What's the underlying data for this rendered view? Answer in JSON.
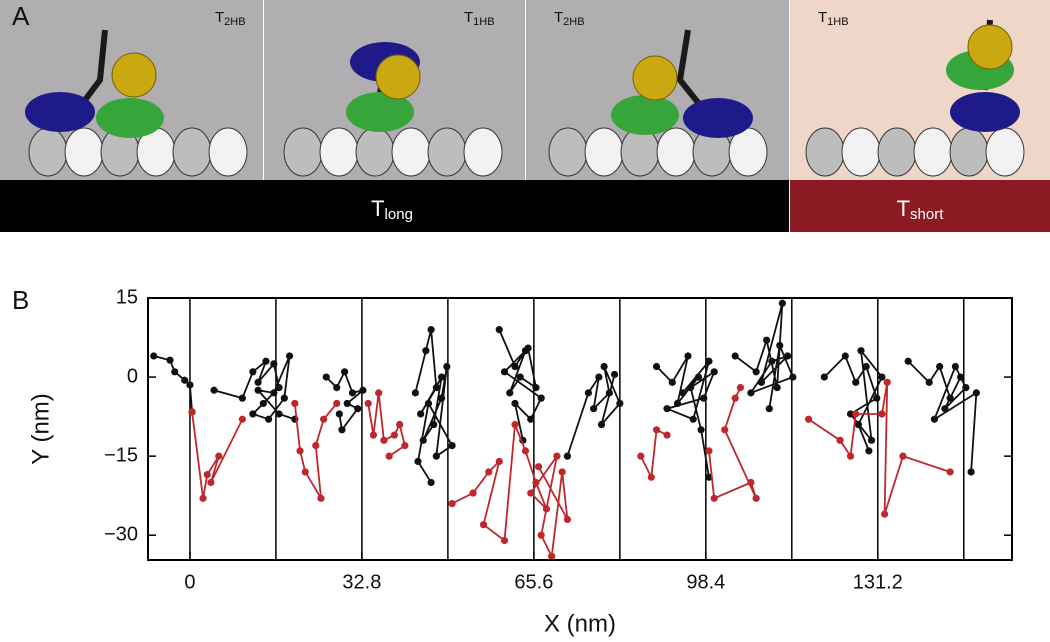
{
  "panel_a": {
    "label": "A",
    "panes": [
      {
        "main": "T",
        "sub": "2HB"
      },
      {
        "main": "T",
        "sub": "1HB"
      },
      {
        "main": "T",
        "sub": "2HB"
      },
      {
        "main": "T",
        "sub": "1HB"
      }
    ],
    "bars": [
      {
        "main": "T",
        "sub": "long",
        "color": "#000000"
      },
      {
        "main": "T",
        "sub": "short",
        "color": "#8b1a22"
      }
    ]
  },
  "chart_data": {
    "type": "line",
    "panel_label": "B",
    "x_label": "X (nm)",
    "y_label": "Y (nm)",
    "xlim": [
      -8,
      156.8
    ],
    "ylim": [
      -34.7,
      15
    ],
    "xticks": [
      0,
      32.8,
      65.6,
      98.4,
      131.2
    ],
    "yticks": [
      15,
      0,
      {
        "value": -15,
        "label": "−15"
      },
      {
        "value": -30,
        "label": "−30"
      }
    ],
    "vlines": [
      0,
      16.4,
      32.8,
      49.2,
      65.6,
      82,
      98.4,
      114.8,
      131.2,
      147.6
    ],
    "series": [
      {
        "color": "#111111",
        "x": [
          -6.9,
          -3.8,
          -2.9,
          -1,
          0,
          0.4,
          null,
          4.6,
          10,
          12,
          14.5,
          13,
          16,
          17,
          14,
          12,
          15,
          18,
          19,
          16,
          13,
          17,
          20,
          null,
          26,
          28,
          29.5,
          31,
          33,
          30,
          32,
          29,
          28.5,
          null,
          43,
          45,
          46,
          47,
          44,
          48,
          46.5,
          44.5,
          48,
          49,
          47,
          50,
          45.5,
          43.5,
          46,
          null,
          59,
          62,
          64,
          61,
          63,
          66,
          64.5,
          60,
          67,
          65,
          62,
          63.5,
          null,
          72,
          76,
          78,
          77,
          80,
          79,
          82,
          78.5,
          81,
          null,
          89,
          92,
          95,
          93,
          97,
          94,
          99,
          96,
          91,
          98,
          100,
          95.5,
          97.5,
          99,
          null,
          104,
          108,
          110,
          112,
          113,
          109,
          114,
          111,
          107,
          115,
          112.5,
          110.5,
          null,
          121,
          125,
          127,
          129,
          131,
          126,
          130,
          128,
          132,
          127.5,
          129.5,
          null,
          137,
          141,
          143,
          145,
          147,
          144,
          148,
          146,
          142,
          150,
          149
        ],
        "values": [
          4,
          3.2,
          1,
          -0.6,
          -1.5,
          -6.6,
          null,
          -2.5,
          -4,
          1,
          3,
          -1,
          2.5,
          -2,
          -5,
          -7,
          -8,
          -4,
          4,
          -3,
          -2.5,
          -7,
          -8,
          null,
          0,
          -2,
          1,
          -3,
          -2.5,
          -5,
          -6,
          -10,
          -7,
          null,
          -3,
          5,
          9,
          -2,
          -7,
          0,
          -9,
          -12,
          -4,
          2,
          -15,
          -13,
          -5,
          -16,
          -20,
          null,
          9,
          2,
          5,
          -3,
          0,
          -2,
          5.5,
          1,
          -4,
          -8,
          -5,
          -12,
          null,
          -15,
          -3,
          0,
          -6,
          -3,
          2,
          -5,
          -9,
          0.5,
          null,
          2,
          -1,
          4,
          -5,
          0,
          -3,
          3,
          -8,
          -6,
          -4,
          1,
          -2,
          -10,
          -19,
          null,
          4,
          1,
          7,
          -2,
          14,
          -1,
          4,
          3,
          -3,
          0,
          6,
          -6,
          null,
          0,
          4,
          -1,
          2,
          -4,
          -7,
          -12,
          5,
          0,
          -9,
          -14,
          null,
          3,
          -1,
          2,
          -4,
          0,
          -6,
          -2,
          2,
          -8,
          -3,
          -18
        ]
      },
      {
        "color": "#c0272d",
        "x": [
          0.4,
          2.5,
          3.3,
          5.5,
          4,
          10,
          null,
          20,
          21,
          22,
          25,
          24,
          25.5,
          28,
          null,
          34,
          35,
          36,
          37,
          39,
          40,
          41,
          38,
          null,
          50,
          54,
          57,
          59,
          56,
          60,
          62,
          64,
          66,
          68,
          65,
          70,
          67,
          69,
          71,
          72,
          66.5,
          null,
          86,
          88,
          89,
          91,
          null,
          99,
          100,
          107,
          108,
          102,
          104,
          105,
          null,
          118,
          124,
          126,
          127,
          132,
          133,
          132.5,
          136,
          145
        ],
        "values": [
          -6.6,
          -23,
          -18.5,
          -15,
          -20,
          -8,
          null,
          -5,
          -14,
          -18,
          -23,
          -13,
          -8,
          -5,
          null,
          -5,
          -11,
          -3,
          -12,
          -11,
          -9,
          -13,
          -15,
          null,
          -24,
          -22,
          -18,
          -16,
          -28,
          -31,
          -9,
          -14,
          -20,
          -25,
          -22,
          -15,
          -30,
          -34,
          -18,
          -27,
          -17,
          null,
          -15,
          -19,
          -10,
          -11,
          null,
          -14,
          -23,
          -20,
          -23,
          -10,
          -4,
          -2,
          null,
          -8,
          -12,
          -15,
          -7,
          -7,
          -1,
          -26,
          -15,
          -18
        ]
      }
    ]
  }
}
